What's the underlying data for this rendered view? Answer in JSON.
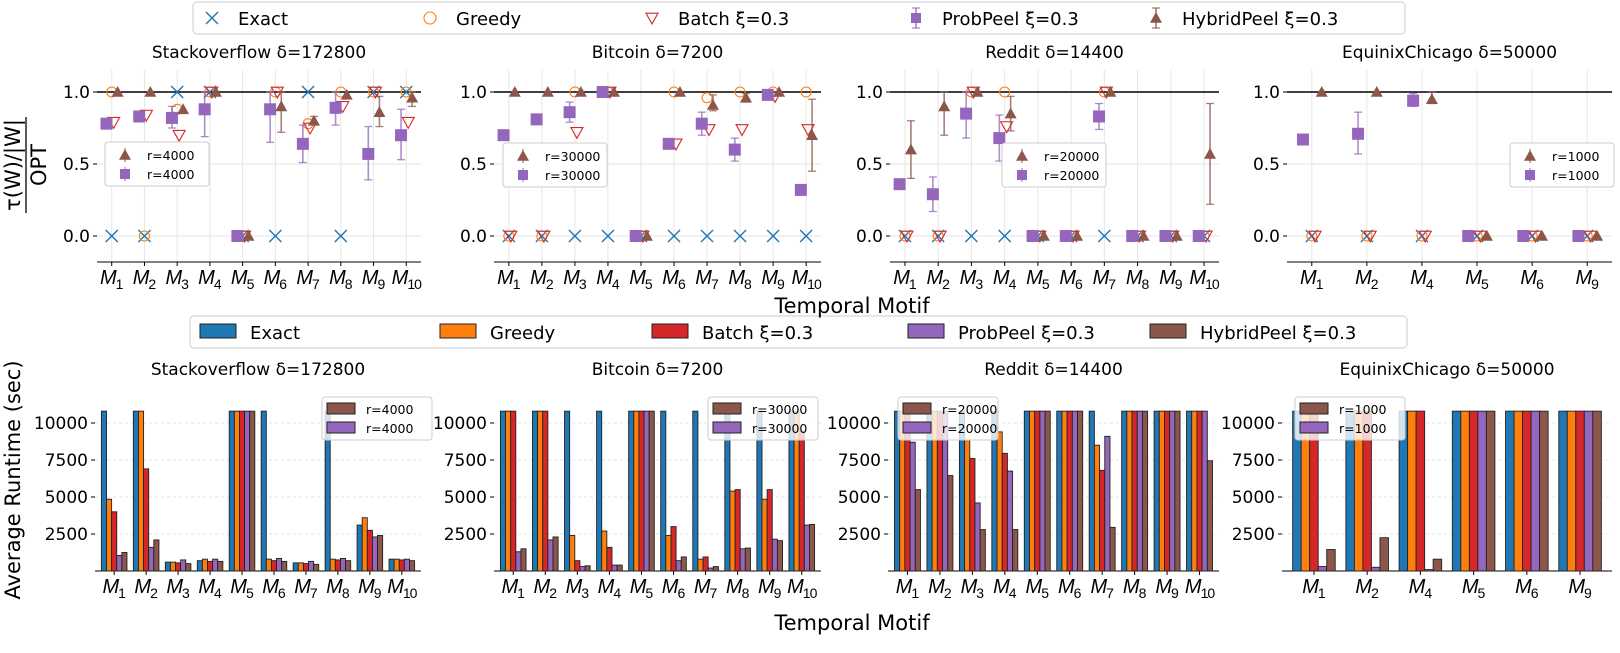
{
  "xlabel": "Temporal Motif",
  "ylabel_top_numerator": "τ(W)/|W|",
  "ylabel_top_denominator": "OPT",
  "ylabel_bottom": "Average Runtime (sec)",
  "methods": [
    {
      "name": "Exact",
      "color": "#1f77b4",
      "marker": "x"
    },
    {
      "name": "Greedy",
      "color": "#ff7f0e",
      "marker": "circle"
    },
    {
      "name": "Batch ξ=0.3",
      "color": "#d62728",
      "marker": "triangle-down"
    },
    {
      "name": "ProbPeel ξ=0.3",
      "color": "#9467bd",
      "marker": "square"
    },
    {
      "name": "HybridPeel ξ=0.3",
      "color": "#8c564b",
      "marker": "triangle-up"
    }
  ],
  "chart_data": [
    {
      "type": "scatter",
      "title": "Stackoverflow δ=172800",
      "categories": [
        "M1",
        "M2",
        "M3",
        "M4",
        "M5",
        "M6",
        "M7",
        "M8",
        "M9",
        "M10"
      ],
      "ylim": [
        -0.18,
        1.15
      ],
      "yticks": [
        "0.0",
        "0.5",
        "1.0"
      ],
      "grid": true,
      "reference_line": 1.0,
      "legend": {
        "placement": "center-left",
        "labels": [
          "r=4000",
          "r=4000"
        ]
      },
      "series": [
        {
          "name": "Exact",
          "values": [
            0,
            0,
            1,
            1,
            0,
            0,
            1,
            0,
            1,
            1
          ]
        },
        {
          "name": "Greedy",
          "values": [
            1,
            0,
            0.88,
            1,
            0,
            1,
            0.78,
            1,
            1,
            1
          ]
        },
        {
          "name": "Batch ξ=0.3",
          "values": [
            0.79,
            0.84,
            0.7,
            1,
            0,
            1,
            0.75,
            0.9,
            1,
            0.79
          ]
        },
        {
          "name": "ProbPeel ξ=0.3",
          "values": [
            0.78,
            0.83,
            0.82,
            0.88,
            0,
            0.88,
            0.64,
            0.89,
            0.57,
            0.7
          ],
          "err": [
            null,
            null,
            [
              0.75,
              0.9
            ],
            [
              0.69,
              1.0
            ],
            null,
            [
              0.65,
              1.0
            ],
            [
              0.51,
              0.77
            ],
            [
              0.77,
              1.0
            ],
            [
              0.39,
              0.76
            ],
            [
              0.53,
              0.88
            ]
          ]
        },
        {
          "name": "HybridPeel ξ=0.3",
          "values": [
            1,
            1,
            0.88,
            1,
            0,
            0.9,
            0.8,
            0.98,
            0.86,
            0.96
          ],
          "err": [
            null,
            null,
            null,
            null,
            null,
            [
              0.72,
              1.0
            ],
            [
              0.78,
              0.83
            ],
            null,
            [
              0.76,
              0.97
            ],
            [
              0.9,
              1.0
            ]
          ]
        }
      ]
    },
    {
      "type": "scatter",
      "title": "Bitcoin δ=7200",
      "categories": [
        "M1",
        "M2",
        "M3",
        "M4",
        "M5",
        "M6",
        "M7",
        "M8",
        "M9",
        "M10"
      ],
      "ylim": [
        -0.18,
        1.15
      ],
      "yticks": [
        "0.0",
        "0.5",
        "1.0"
      ],
      "grid": true,
      "reference_line": 1.0,
      "legend": {
        "placement": "center-left",
        "labels": [
          "r=30000",
          "r=30000"
        ]
      },
      "series": [
        {
          "name": "Exact",
          "values": [
            0,
            0,
            0,
            0,
            0,
            0,
            0,
            0,
            0,
            0
          ]
        },
        {
          "name": "Greedy",
          "values": [
            0,
            0,
            1,
            1,
            0,
            1,
            0.96,
            1,
            1,
            1
          ]
        },
        {
          "name": "Batch ξ=0.3",
          "values": [
            0,
            0,
            0.72,
            1,
            0,
            0.64,
            0.74,
            0.74,
            0.97,
            0.74
          ]
        },
        {
          "name": "ProbPeel ξ=0.3",
          "values": [
            0.7,
            0.81,
            0.86,
            1,
            0,
            0.64,
            0.78,
            0.6,
            0.98,
            0.32
          ],
          "err": [
            null,
            null,
            [
              0.79,
              0.93
            ],
            null,
            null,
            null,
            [
              0.7,
              0.86
            ],
            [
              0.52,
              0.68
            ],
            null,
            null
          ]
        },
        {
          "name": "HybridPeel ξ=0.3",
          "values": [
            1,
            1,
            1,
            1,
            0,
            1,
            0.91,
            0.96,
            1,
            0.7
          ],
          "err": [
            null,
            null,
            null,
            null,
            null,
            null,
            [
              0.87,
              0.98
            ],
            [
              0.93,
              0.99
            ],
            null,
            [
              0.45,
              0.95
            ]
          ]
        }
      ]
    },
    {
      "type": "scatter",
      "title": "Reddit δ=14400",
      "categories": [
        "M1",
        "M2",
        "M3",
        "M4",
        "M5",
        "M6",
        "M7",
        "M8",
        "M9",
        "M10"
      ],
      "ylim": [
        -0.18,
        1.15
      ],
      "yticks": [
        "0.0",
        "0.5",
        "1.0"
      ],
      "grid": true,
      "reference_line": 1.0,
      "legend": {
        "placement": "center",
        "labels": [
          "r=20000",
          "r=20000"
        ]
      },
      "series": [
        {
          "name": "Exact",
          "values": [
            0,
            0,
            0,
            0,
            0,
            0,
            0,
            0,
            0,
            0
          ]
        },
        {
          "name": "Greedy",
          "values": [
            0,
            0,
            1,
            1,
            0,
            0,
            1,
            0,
            0,
            0
          ]
        },
        {
          "name": "Batch ξ=0.3",
          "values": [
            0,
            0,
            1,
            0.76,
            0,
            0,
            1,
            0,
            0,
            0
          ]
        },
        {
          "name": "ProbPeel ξ=0.3",
          "values": [
            0.36,
            0.29,
            0.85,
            0.68,
            0,
            0,
            0.83,
            0,
            0,
            0
          ],
          "err": [
            null,
            [
              0.17,
              0.41
            ],
            [
              0.68,
              1.0
            ],
            [
              0.52,
              0.84
            ],
            null,
            null,
            [
              0.74,
              0.92
            ],
            null,
            null,
            null
          ]
        },
        {
          "name": "HybridPeel ξ=0.3",
          "values": [
            0.6,
            0.9,
            1,
            0.85,
            0,
            0,
            1,
            0,
            0,
            0.57
          ],
          "err": [
            [
              0.4,
              0.8
            ],
            [
              0.7,
              1.0
            ],
            null,
            [
              0.73,
              0.97
            ],
            null,
            null,
            null,
            null,
            null,
            [
              0.22,
              0.92
            ]
          ]
        }
      ]
    },
    {
      "type": "scatter",
      "title": "EquinixChicago δ=50000",
      "categories": [
        "M1",
        "M2",
        "M4",
        "M5",
        "M6",
        "M9"
      ],
      "ylim": [
        -0.18,
        1.15
      ],
      "yticks": [
        "0.0",
        "0.5",
        "1.0"
      ],
      "grid": true,
      "reference_line": 1.0,
      "legend": {
        "placement": "center-right",
        "labels": [
          "r=1000",
          "r=1000"
        ]
      },
      "series": [
        {
          "name": "Exact",
          "values": [
            0,
            0,
            0,
            0,
            0,
            0
          ]
        },
        {
          "name": "Greedy",
          "values": [
            0,
            0,
            0,
            0,
            0,
            0
          ]
        },
        {
          "name": "Batch ξ=0.3",
          "values": [
            0,
            0,
            0,
            0,
            0,
            0
          ]
        },
        {
          "name": "ProbPeel ξ=0.3",
          "values": [
            0.67,
            0.71,
            0.94,
            0,
            0,
            0
          ],
          "err": [
            null,
            [
              0.57,
              0.86
            ],
            [
              0.9,
              0.99
            ],
            null,
            null,
            null
          ]
        },
        {
          "name": "HybridPeel ξ=0.3",
          "values": [
            1,
            1,
            0.95,
            0,
            0,
            0
          ],
          "err": [
            null,
            null,
            [
              0.92,
              1.0
            ],
            null,
            null,
            null
          ]
        }
      ]
    },
    {
      "type": "bar",
      "title": "Stackoverflow δ=172800",
      "categories": [
        "M1",
        "M2",
        "M3",
        "M4",
        "M5",
        "M6",
        "M7",
        "M8",
        "M9",
        "M10"
      ],
      "ylim": [
        0,
        11500
      ],
      "yticks": [
        "2500",
        "5000",
        "7500",
        "10000"
      ],
      "grid": "horizontal-dashed",
      "legend": {
        "placement": "upper-right",
        "labels": [
          "r=4000",
          "r=4000"
        ]
      },
      "series": [
        {
          "name": "Exact",
          "values": [
            10800,
            10800,
            600,
            700,
            10800,
            10800,
            550,
            10800,
            3100,
            800
          ]
        },
        {
          "name": "Greedy",
          "values": [
            4850,
            10800,
            600,
            800,
            10800,
            800,
            550,
            800,
            3600,
            800
          ]
        },
        {
          "name": "Batch ξ=0.3",
          "values": [
            4000,
            6900,
            550,
            650,
            10800,
            700,
            500,
            750,
            2750,
            750
          ]
        },
        {
          "name": "ProbPeel ξ=0.3",
          "values": [
            1050,
            1600,
            750,
            800,
            10800,
            850,
            650,
            850,
            2300,
            800
          ]
        },
        {
          "name": "HybridPeel ξ=0.3",
          "values": [
            1250,
            2100,
            500,
            650,
            10800,
            650,
            450,
            700,
            2400,
            700
          ]
        }
      ]
    },
    {
      "type": "bar",
      "title": "Bitcoin δ=7200",
      "categories": [
        "M1",
        "M2",
        "M3",
        "M4",
        "M5",
        "M6",
        "M7",
        "M8",
        "M9",
        "M10"
      ],
      "ylim": [
        0,
        11500
      ],
      "yticks": [
        "2500",
        "5000",
        "7500",
        "10000"
      ],
      "grid": "horizontal-dashed",
      "legend": {
        "placement": "upper-right",
        "labels": [
          "r=30000",
          "r=30000"
        ]
      },
      "series": [
        {
          "name": "Exact",
          "values": [
            10800,
            10800,
            10800,
            10800,
            10800,
            10800,
            10800,
            10800,
            10800,
            10800
          ]
        },
        {
          "name": "Greedy",
          "values": [
            10800,
            10800,
            2400,
            2700,
            10800,
            2400,
            800,
            5400,
            4850,
            10800
          ]
        },
        {
          "name": "Batch ξ=0.3",
          "values": [
            10800,
            10800,
            700,
            1600,
            10800,
            3000,
            950,
            5500,
            5500,
            9450
          ]
        },
        {
          "name": "ProbPeel ξ=0.3",
          "values": [
            1300,
            2100,
            300,
            400,
            10800,
            700,
            200,
            1500,
            2150,
            3100
          ]
        },
        {
          "name": "HybridPeel ξ=0.3",
          "values": [
            1500,
            2300,
            350,
            400,
            10800,
            950,
            300,
            1550,
            2050,
            3150
          ]
        }
      ]
    },
    {
      "type": "bar",
      "title": "Reddit δ=14400",
      "categories": [
        "M1",
        "M2",
        "M3",
        "M4",
        "M5",
        "M6",
        "M7",
        "M8",
        "M9",
        "M10"
      ],
      "ylim": [
        0,
        11500
      ],
      "yticks": [
        "2500",
        "5000",
        "7500",
        "10000"
      ],
      "grid": "horizontal-dashed",
      "legend": {
        "placement": "upper-left",
        "labels": [
          "r=20000",
          "r=20000"
        ]
      },
      "series": [
        {
          "name": "Exact",
          "values": [
            10800,
            10800,
            10800,
            10800,
            10800,
            10800,
            10800,
            10800,
            10800,
            10800
          ]
        },
        {
          "name": "Greedy",
          "values": [
            10800,
            10800,
            8850,
            9400,
            10800,
            10800,
            8500,
            10800,
            10800,
            10800
          ]
        },
        {
          "name": "Batch ξ=0.3",
          "values": [
            10800,
            10800,
            7600,
            7950,
            10800,
            10800,
            6800,
            10800,
            10800,
            10800
          ]
        },
        {
          "name": "ProbPeel ξ=0.3",
          "values": [
            8700,
            10800,
            4600,
            6750,
            10800,
            10800,
            9100,
            10800,
            10800,
            10800
          ]
        },
        {
          "name": "HybridPeel ξ=0.3",
          "values": [
            5500,
            6450,
            2800,
            2800,
            10800,
            10800,
            2950,
            10800,
            10800,
            7450
          ]
        }
      ]
    },
    {
      "type": "bar",
      "title": "EquinixChicago δ=50000",
      "categories": [
        "M1",
        "M2",
        "M4",
        "M5",
        "M6",
        "M9"
      ],
      "ylim": [
        0,
        11500
      ],
      "yticks": [
        "2500",
        "5000",
        "7500",
        "10000"
      ],
      "grid": "horizontal-dashed",
      "legend": {
        "placement": "upper-left",
        "labels": [
          "r=1000",
          "r=1000"
        ]
      },
      "series": [
        {
          "name": "Exact",
          "values": [
            10800,
            10800,
            10800,
            10800,
            10800,
            10800
          ]
        },
        {
          "name": "Greedy",
          "values": [
            10800,
            10800,
            10800,
            10800,
            10800,
            10800
          ]
        },
        {
          "name": "Batch ξ=0.3",
          "values": [
            10800,
            10800,
            10800,
            10800,
            10800,
            10800
          ]
        },
        {
          "name": "ProbPeel ξ=0.3",
          "values": [
            300,
            250,
            100,
            10800,
            10800,
            10800
          ]
        },
        {
          "name": "HybridPeel ξ=0.3",
          "values": [
            1450,
            2250,
            800,
            10800,
            10800,
            10800
          ]
        }
      ]
    }
  ]
}
